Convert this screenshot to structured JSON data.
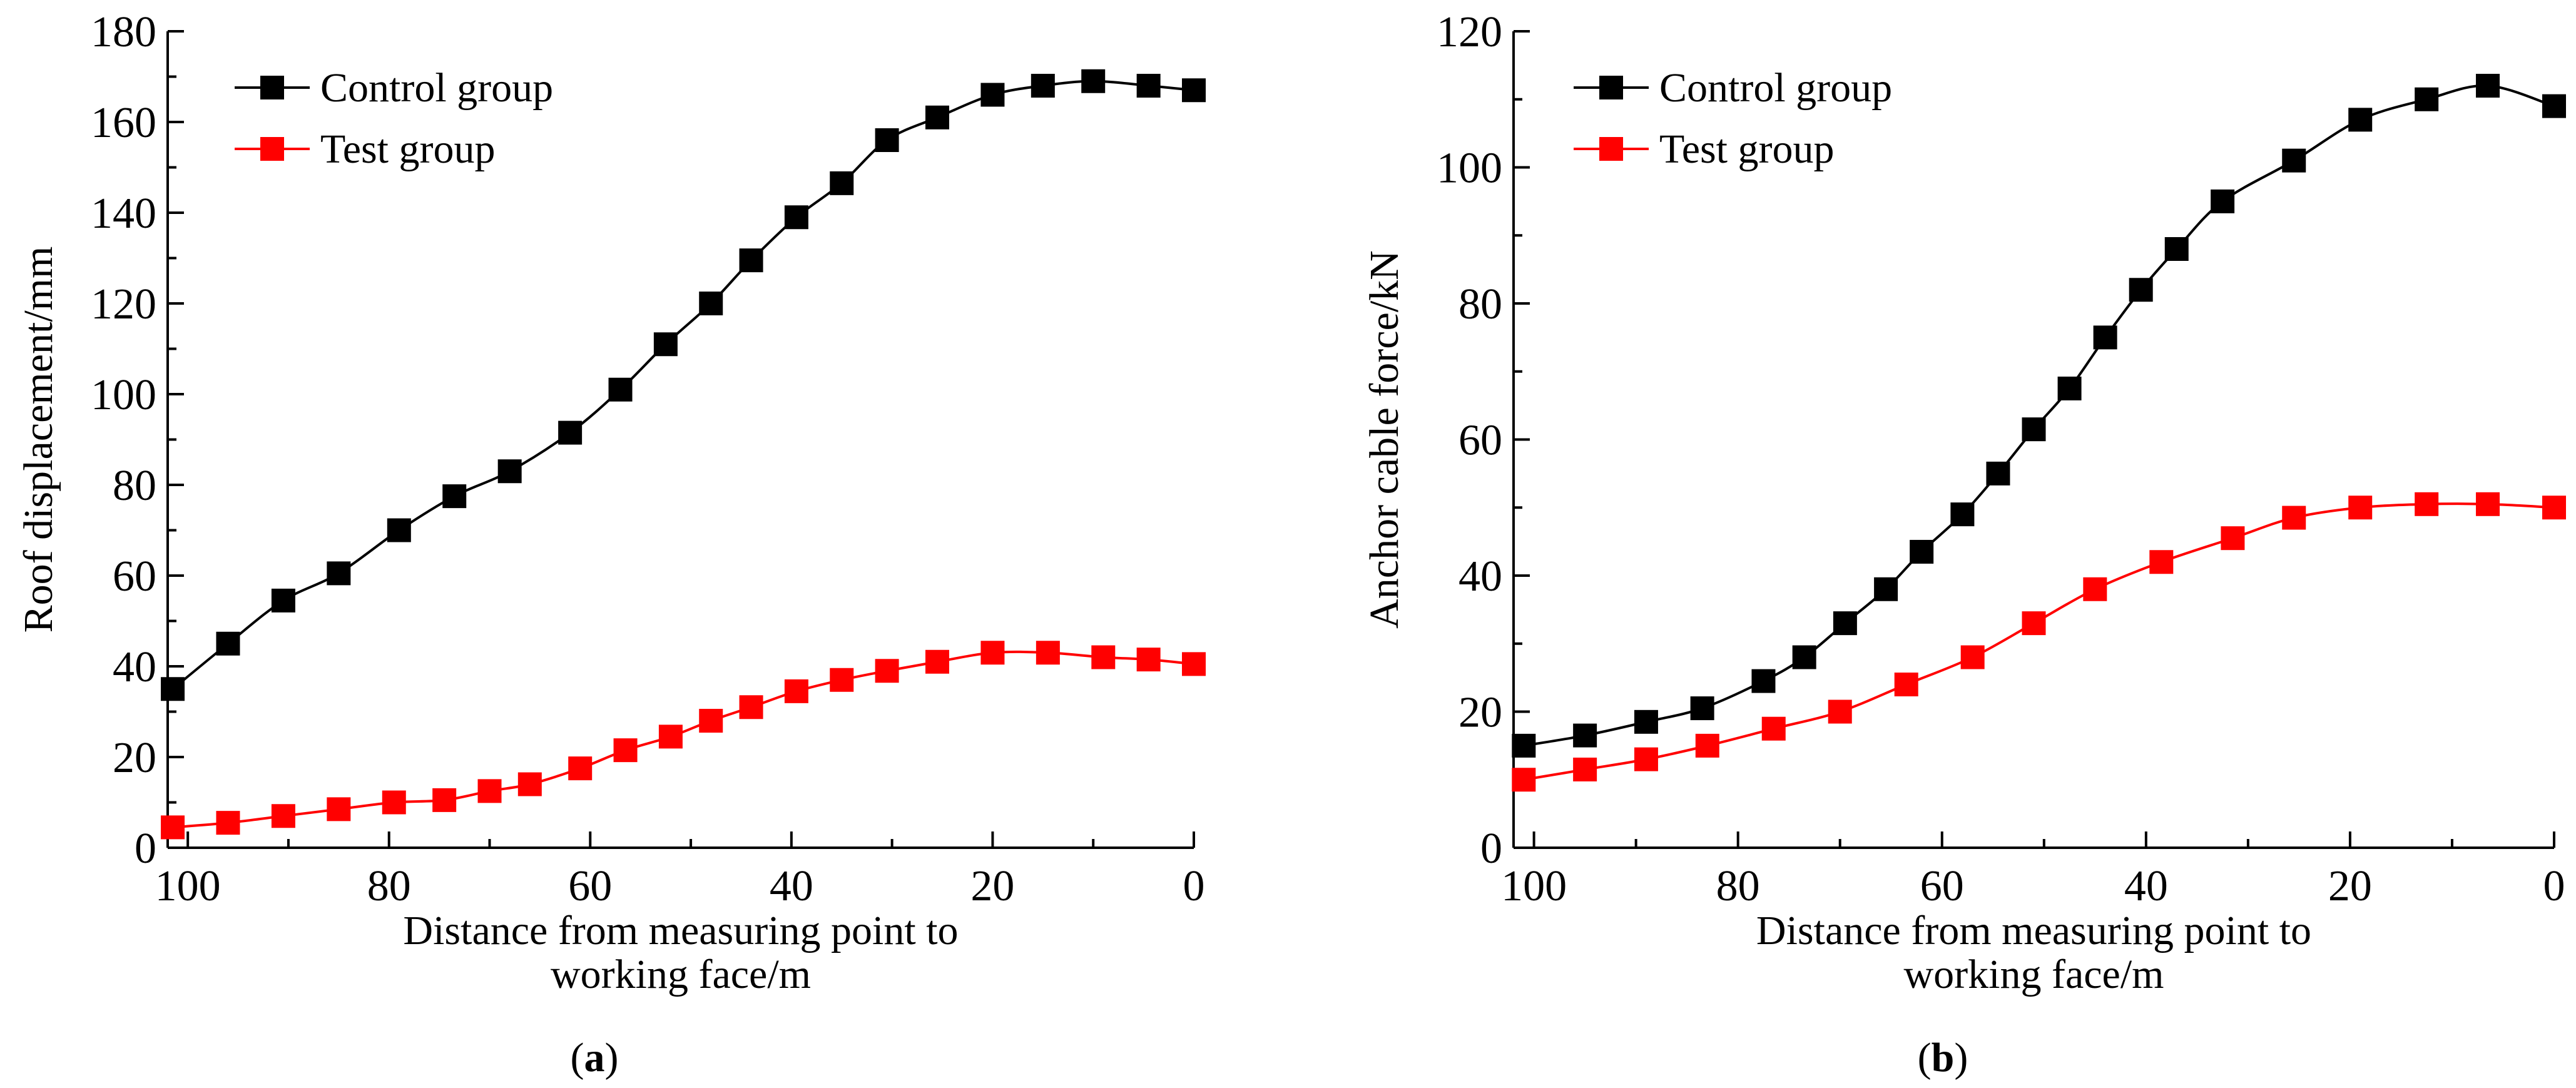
{
  "chart_data": [
    {
      "type": "line",
      "panel_label": "(a)",
      "panel_letter": "a",
      "xlabel_line1": "Distance from measuring point to",
      "xlabel_line2": "working face/m",
      "ylabel": "Roof displacement/mm",
      "xlim": [
        102,
        0
      ],
      "ylim": [
        0,
        180
      ],
      "x_ticks": [
        100,
        80,
        60,
        40,
        20,
        0
      ],
      "y_ticks": [
        0,
        20,
        40,
        60,
        80,
        100,
        120,
        140,
        160,
        180
      ],
      "legend_position": "top-left",
      "series": [
        {
          "name": "Control group",
          "color": "#000000",
          "x": [
            101.5,
            96,
            90.5,
            85,
            79,
            73.5,
            68,
            62,
            57,
            52.5,
            48,
            44,
            39.5,
            35,
            30.5,
            25.5,
            20,
            15,
            10,
            4.5,
            0
          ],
          "y": [
            35,
            45,
            54.5,
            60.5,
            70,
            77.5,
            83,
            91.5,
            101,
            111,
            120,
            129.5,
            139,
            146.5,
            156,
            161,
            166,
            168,
            169,
            168,
            167
          ]
        },
        {
          "name": "Test group",
          "color": "#ff0000",
          "x": [
            101.5,
            96,
            90.5,
            85,
            79.5,
            74.5,
            70,
            66,
            61,
            56.5,
            52,
            48,
            44,
            39.5,
            35,
            30.5,
            25.5,
            20,
            14.5,
            9,
            4.5,
            0
          ],
          "y": [
            4.5,
            5.5,
            7,
            8.5,
            10,
            10.5,
            12.5,
            14,
            17.5,
            21.5,
            24.5,
            28,
            31,
            34.5,
            37,
            39,
            41,
            43,
            43,
            42,
            41.5,
            40.5
          ]
        }
      ]
    },
    {
      "type": "line",
      "panel_label": "(b)",
      "panel_letter": "b",
      "xlabel_line1": "Distance from measuring point to",
      "xlabel_line2": "working face/m",
      "ylabel": "Anchor cable force/kN",
      "xlim": [
        102,
        0
      ],
      "ylim": [
        0,
        120
      ],
      "x_ticks": [
        100,
        80,
        60,
        40,
        20,
        0
      ],
      "y_ticks": [
        0,
        20,
        40,
        60,
        80,
        100,
        120
      ],
      "legend_position": "top-left",
      "series": [
        {
          "name": "Control group",
          "color": "#000000",
          "x": [
            101,
            95,
            89,
            83.5,
            77.5,
            73.5,
            69.5,
            65.5,
            62,
            58,
            54.5,
            51,
            47.5,
            44,
            40.5,
            37,
            32.5,
            25.5,
            19,
            12.5,
            6.5,
            0
          ],
          "y": [
            15,
            16.5,
            18.5,
            20.5,
            24.5,
            28,
            33,
            38,
            43.5,
            49,
            55,
            61.5,
            67.5,
            75,
            82,
            88,
            95,
            101,
            107,
            110,
            112,
            109
          ]
        },
        {
          "name": "Test group",
          "color": "#ff0000",
          "x": [
            101,
            95,
            89,
            83,
            76.5,
            70,
            63.5,
            57,
            51,
            45,
            38.5,
            31.5,
            25.5,
            19,
            12.5,
            6.5,
            0
          ],
          "y": [
            10,
            11.5,
            13,
            15,
            17.5,
            20,
            24,
            28,
            33,
            38,
            42,
            45.5,
            48.5,
            50,
            50.5,
            50.5,
            50
          ]
        }
      ]
    }
  ]
}
